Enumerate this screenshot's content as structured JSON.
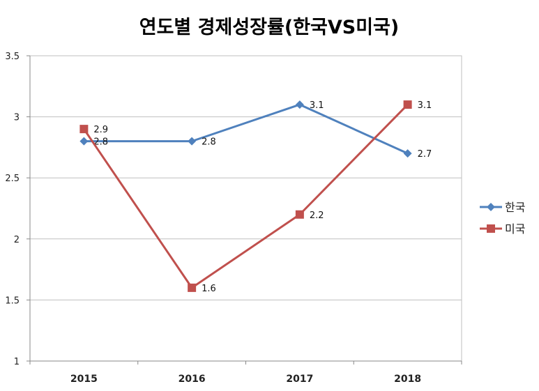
{
  "chart_data": {
    "type": "line",
    "title": "연도별 경제성장률(한국VS미국)",
    "categories": [
      "2015",
      "2016",
      "2017",
      "2018"
    ],
    "ylim": [
      1,
      3.5
    ],
    "yticks": [
      "1",
      "1.5",
      "2",
      "2.5",
      "3",
      "3.5"
    ],
    "ytick_values": [
      1,
      1.5,
      2,
      2.5,
      3,
      3.5
    ],
    "grid": true,
    "legend_position": "right",
    "series": [
      {
        "name": "한국",
        "color": "#4F81BD",
        "marker": "diamond",
        "values": [
          2.8,
          2.8,
          3.1,
          2.7
        ],
        "labels": [
          "2.8",
          "2.8",
          "3.1",
          "2.7"
        ]
      },
      {
        "name": "미국",
        "color": "#C0504D",
        "marker": "square",
        "values": [
          2.9,
          1.6,
          2.2,
          3.1
        ],
        "labels": [
          "2.9",
          "1.6",
          "2.2",
          "3.1"
        ]
      }
    ]
  }
}
